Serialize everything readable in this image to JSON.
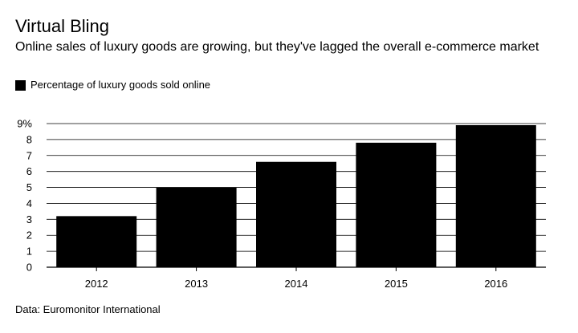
{
  "title": "Virtual Bling",
  "subtitle": "Online sales of luxury goods are growing, but they've lagged the overall e-commerce market",
  "source": "Data: Euromonitor International",
  "chart_data": {
    "type": "bar",
    "title": "Virtual Bling",
    "subtitle": "Online sales of luxury goods are growing, but they've lagged the overall e-commerce market",
    "categories": [
      "2012",
      "2013",
      "2014",
      "2015",
      "2016"
    ],
    "series": [
      {
        "name": "Percentage of luxury goods sold online",
        "values": [
          3.2,
          5.0,
          6.6,
          7.8,
          8.9
        ],
        "color": "#000000"
      }
    ],
    "ylim": [
      0,
      9
    ],
    "yticks": [
      0,
      1,
      2,
      3,
      4,
      5,
      6,
      7,
      8,
      9
    ],
    "ytick_labels": [
      "0",
      "1",
      "2",
      "3",
      "4",
      "5",
      "6",
      "7",
      "8",
      "9%"
    ],
    "xlabel": "",
    "ylabel": "",
    "grid": true,
    "legend": "top-left"
  }
}
